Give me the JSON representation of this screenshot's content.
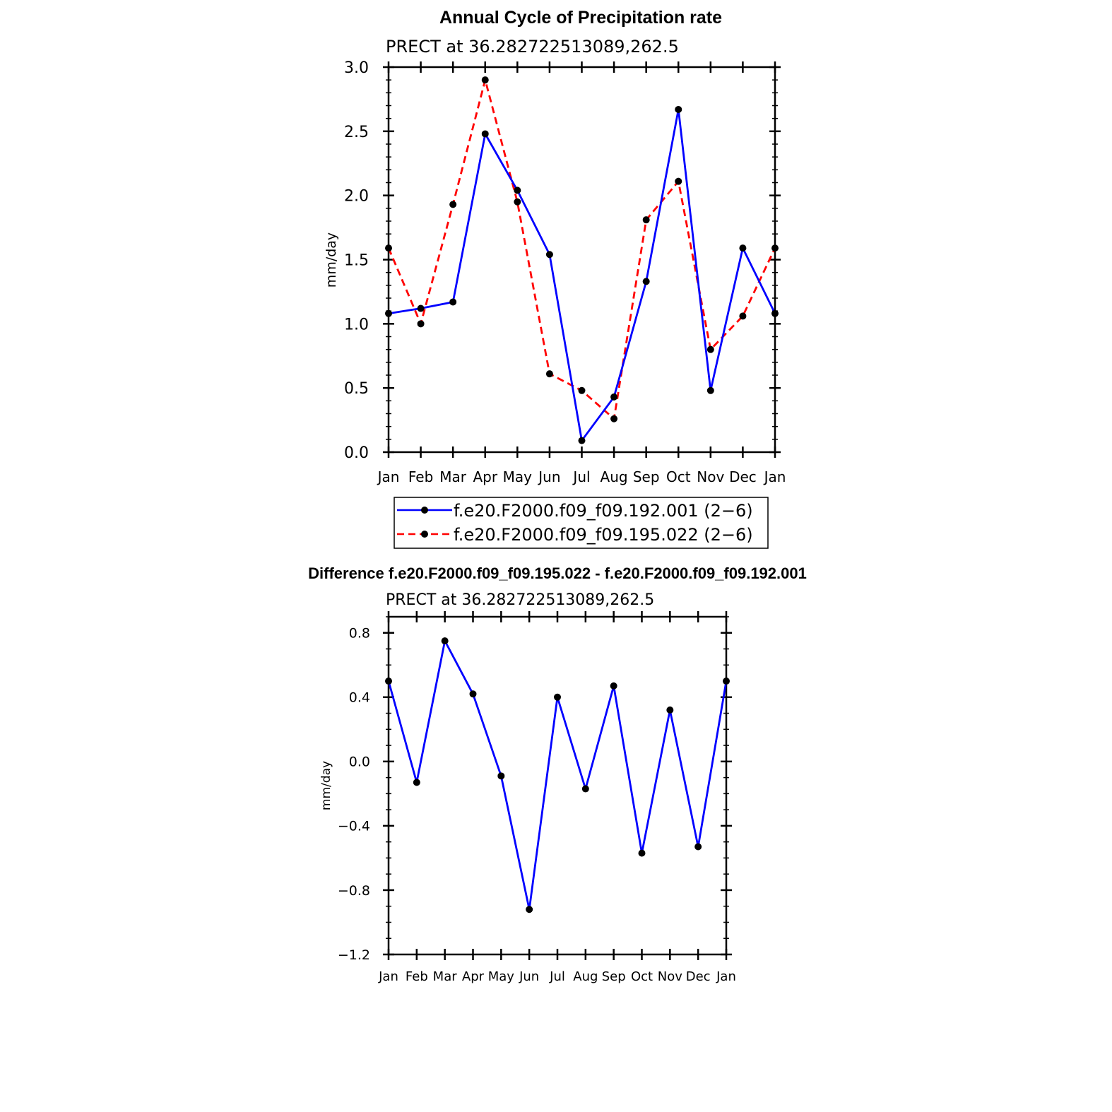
{
  "chart_data": [
    {
      "type": "line",
      "title": "Annual Cycle of Precipitation rate",
      "subtitle": "PRECT at 36.282722513089,262.5",
      "ylabel": "mm/day",
      "xlabel": "",
      "categories": [
        "Jan",
        "Feb",
        "Mar",
        "Apr",
        "May",
        "Jun",
        "Jul",
        "Aug",
        "Sep",
        "Oct",
        "Nov",
        "Dec",
        "Jan"
      ],
      "ylim": [
        0,
        3.0
      ],
      "yticks": [
        "0.0",
        "0.5",
        "1.0",
        "1.5",
        "2.0",
        "2.5",
        "3.0"
      ],
      "ytick_values": [
        0,
        0.5,
        1.0,
        1.5,
        2.0,
        2.5,
        3.0
      ],
      "y_minor_step": 0.1,
      "grid": false,
      "legend_position": "bottom",
      "series": [
        {
          "name": "f.e20.F2000.f09_f09.192.001 (2−6)",
          "color": "#0000ff",
          "dash": "solid",
          "values": [
            1.08,
            1.12,
            1.17,
            2.48,
            2.04,
            1.54,
            0.09,
            0.43,
            1.33,
            2.67,
            0.48,
            1.59,
            1.08
          ]
        },
        {
          "name": "f.e20.F2000.f09_f09.195.022 (2−6)",
          "color": "#ff0000",
          "dash": "dashed",
          "values": [
            1.59,
            1.0,
            1.93,
            2.9,
            1.95,
            0.61,
            0.48,
            0.26,
            1.81,
            2.11,
            0.8,
            1.06,
            1.59
          ]
        }
      ]
    },
    {
      "type": "line",
      "title": "Difference f.e20.F2000.f09_f09.195.022 - f.e20.F2000.f09_f09.192.001",
      "subtitle": "PRECT at 36.282722513089,262.5",
      "ylabel": "mm/day",
      "xlabel": "",
      "categories": [
        "Jan",
        "Feb",
        "Mar",
        "Apr",
        "May",
        "Jun",
        "Jul",
        "Aug",
        "Sep",
        "Oct",
        "Nov",
        "Dec",
        "Jan"
      ],
      "ylim": [
        -1.2,
        0.9
      ],
      "yticks": [
        "−1.2",
        "−0.8",
        "−0.4",
        "0.0",
        "0.4",
        "0.8"
      ],
      "ytick_values": [
        -1.2,
        -0.8,
        -0.4,
        0.0,
        0.4,
        0.8
      ],
      "y_minor_step": 0.1,
      "grid": false,
      "series": [
        {
          "color": "#0000ff",
          "dash": "solid",
          "values": [
            0.5,
            -0.13,
            0.75,
            0.42,
            -0.09,
            -0.92,
            0.4,
            -0.17,
            0.47,
            -0.57,
            0.32,
            -0.53,
            0.5
          ]
        }
      ]
    }
  ]
}
